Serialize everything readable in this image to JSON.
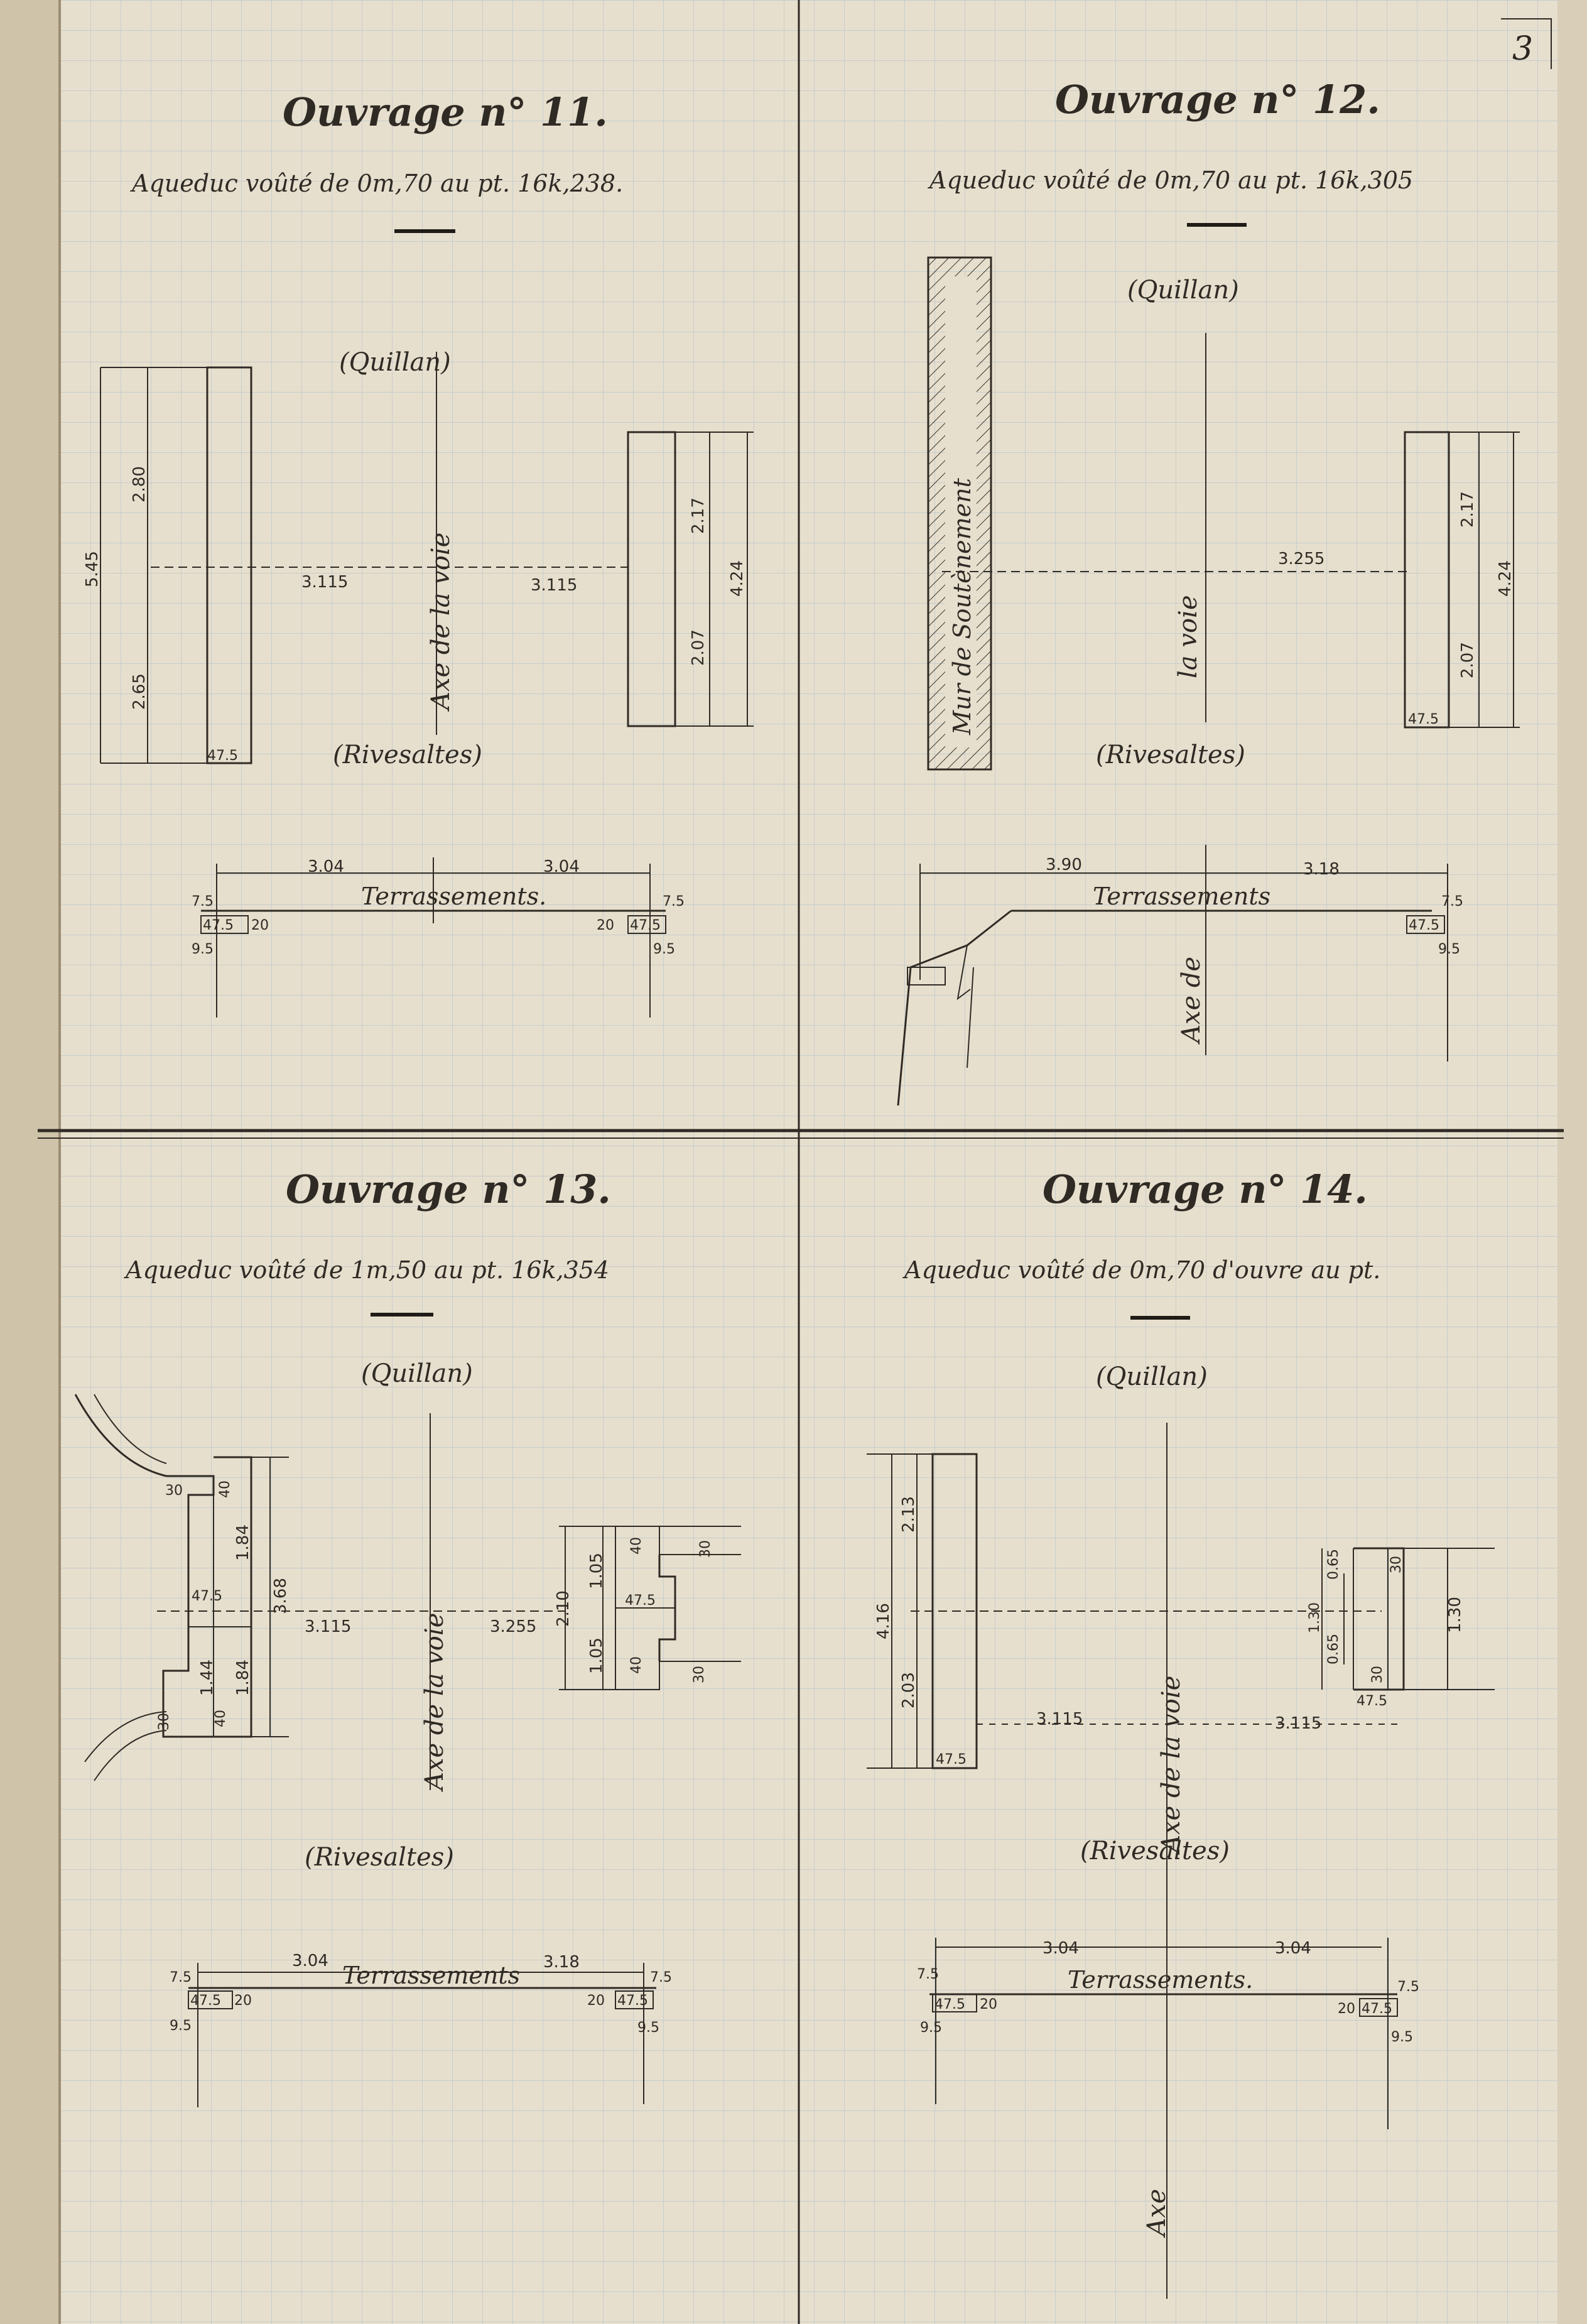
{
  "page": {
    "number": "3"
  },
  "panels": [
    {
      "id": "11",
      "title": "Ouvrage n° 11.",
      "subtitle": "Aqueduc voûté de 0m,70 au pt. 16k,238.",
      "top_label": "(Quillan)",
      "bottom_label": "(Rivesaltes)",
      "axis_label": "Axe de la voie",
      "dims": {
        "total_height": "5.45",
        "upper": "2.80",
        "lower": "2.65",
        "wall_width": "47.5",
        "left_offset": "3.115",
        "right_offset": "3.115",
        "right_upper": "2.17",
        "right_lower": "2.07",
        "right_total": "4.24"
      },
      "profile": {
        "label": "Terrassements.",
        "left_width": "3.04",
        "right_width": "3.04",
        "left_top": "7.5",
        "left_block": "47.5",
        "left_depth": "20",
        "left_bottom": "9.5",
        "right_top": "7.5",
        "right_block": "47.5",
        "right_depth": "20",
        "right_bottom": "9.5"
      }
    },
    {
      "id": "12",
      "title": "Ouvrage n° 12.",
      "subtitle": "Aqueduc voûté de 0m,70 au pt. 16k,305",
      "top_label": "(Quillan)",
      "bottom_label": "(Rivesaltes)",
      "axis_label": "la voie",
      "wall_label": "Mur de Soutènement",
      "dims": {
        "right_offset": "3.255",
        "right_upper": "2.17",
        "right_lower": "2.07",
        "right_total": "4.24",
        "wall_width": "47.5"
      },
      "profile": {
        "label": "Terrassements",
        "left_width": "3.90",
        "right_width": "3.18",
        "axis_label": "Axe de",
        "right_top": "7.5",
        "right_block": "47.5",
        "right_bottom": "9.5"
      }
    },
    {
      "id": "13",
      "title": "Ouvrage n° 13.",
      "subtitle": "Aqueduc voûté de 1m,50 au pt. 16k,354",
      "top_label": "(Quillan)",
      "bottom_label": "(Rivesaltes)",
      "axis_label": "Axe de la voie",
      "dims": {
        "left_top_step": "30",
        "left_top_wall": "40",
        "left_upper": "1.84",
        "left_total": "3.68",
        "left_wall_width": "47.5",
        "left_mid": "1.44",
        "left_lower": "1.84",
        "left_bottom_step": "30",
        "left_bottom_wall": "40",
        "left_offset": "3.115",
        "right_offset": "3.255",
        "right_total": "2.10",
        "right_upper": "1.05",
        "right_lower": "1.05",
        "right_wall": "47.5",
        "right_top_wall": "40",
        "right_top_step": "30",
        "right_bottom_wall": "40",
        "right_bottom_step": "30"
      },
      "profile": {
        "label": "Terrassements",
        "left_width": "3.04",
        "right_width": "3.18",
        "left_top": "7.5",
        "left_block": "47.5",
        "left_depth": "20",
        "left_bottom": "9.5",
        "right_top": "7.5",
        "right_block": "47.5",
        "right_depth": "20",
        "right_bottom": "9.5"
      }
    },
    {
      "id": "14",
      "title": "Ouvrage n° 14.",
      "subtitle": "Aqueduc voûté de 0m,70 d'ouvre au pt.",
      "top_label": "(Quillan)",
      "bottom_label": "(Rivesaltes)",
      "axis_label": "Axe de la voie",
      "dims": {
        "left_total": "4.16",
        "left_upper": "2.13",
        "left_lower": "2.03",
        "left_wall": "47.5",
        "left_offset": "3.115",
        "right_offset": "3.115",
        "right_upper_small": "0.65",
        "right_total_small": "1.30",
        "right_lower_small": "0.65",
        "right_inner": "1.30",
        "right_top_step": "30",
        "right_bottom_step": "30",
        "right_wall": "47.5"
      },
      "profile": {
        "label": "Terrassements.",
        "left_width": "3.04",
        "right_width": "3.04",
        "axis_label": "Axe",
        "left_top": "7.5",
        "left_block": "47.5",
        "left_depth": "20",
        "left_bottom": "9.5",
        "right_top": "7.5",
        "right_block": "47.5",
        "right_depth": "20",
        "right_bottom": "9.5"
      }
    }
  ]
}
